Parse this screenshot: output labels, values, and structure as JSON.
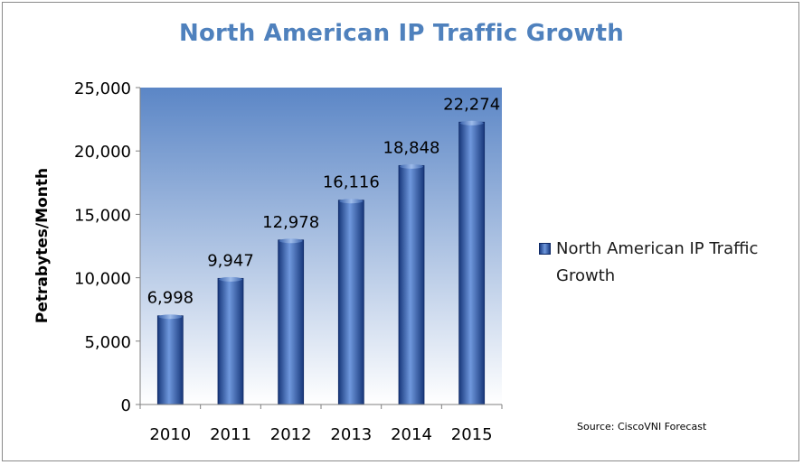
{
  "chart_data": {
    "type": "bar",
    "title": "North American IP Traffic Growth",
    "xlabel": "",
    "ylabel": "Petrabytes/Month",
    "categories": [
      "2010",
      "2011",
      "2012",
      "2013",
      "2014",
      "2015"
    ],
    "series": [
      {
        "name": "North American IP Traffic Growth",
        "values": [
          6998,
          9947,
          12978,
          16116,
          18848,
          22274
        ]
      }
    ],
    "data_labels": [
      "6,998",
      "9,947",
      "12,978",
      "16,116",
      "18,848",
      "22,274"
    ],
    "ylim": [
      0,
      25000
    ],
    "yticks": [
      0,
      5000,
      10000,
      15000,
      20000,
      25000
    ],
    "ytick_labels": [
      "0",
      "5,000",
      "10,000",
      "15,000",
      "20,000",
      "25,000"
    ],
    "grid": false,
    "legend_position": "right",
    "source": "Source: CiscoVNI Forecast",
    "colors": {
      "title": "#4f81bd",
      "bar_dark": "#1c3f86",
      "bar_light": "#6f98dd",
      "plot_bg_top": "#5b86c6",
      "plot_bg_bottom": "#ffffff"
    }
  }
}
